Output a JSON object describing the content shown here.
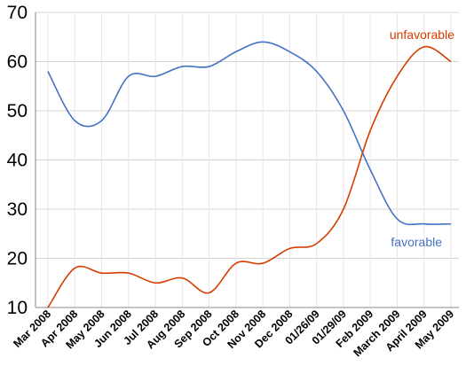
{
  "chart_data": {
    "type": "line",
    "title": "",
    "xlabel": "",
    "ylabel": "",
    "ylim": [
      10,
      70
    ],
    "yticks": [
      10,
      20,
      30,
      40,
      50,
      60,
      70
    ],
    "grid": true,
    "legend": "none",
    "categories": [
      "Mar 2008",
      "Apr 2008",
      "May 2008",
      "Jun 2008",
      "Jul 2008",
      "Aug 2008",
      "Sep 2008",
      "Oct 2008",
      "Nov 2008",
      "Dec 2008",
      "01/26/09",
      "01/29/09",
      "Feb 2009",
      "March 2009",
      "April 2009",
      "May 2009"
    ],
    "series": [
      {
        "name": "favorable",
        "color": "#4472C4",
        "values": [
          58,
          48,
          48,
          57,
          57,
          59,
          59,
          62,
          64,
          62,
          58,
          50,
          38,
          28,
          27,
          27
        ]
      },
      {
        "name": "unfavorable",
        "color": "#D83B01",
        "values": [
          10,
          18,
          17,
          17,
          15,
          16,
          13,
          19,
          19,
          22,
          23,
          30,
          46,
          57,
          63,
          60
        ]
      }
    ]
  }
}
